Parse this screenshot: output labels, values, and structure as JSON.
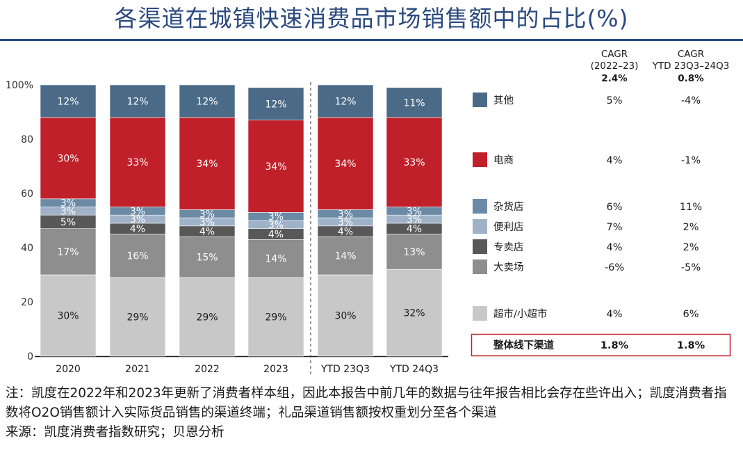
{
  "title": "各渠道在城镇快速消费品市场销售额中的占比(%)",
  "chart_data": {
    "type": "bar",
    "stacked": true,
    "categories": [
      "2020",
      "2021",
      "2022",
      "2023",
      "YTD 23Q3",
      "YTD 24Q3"
    ],
    "yticks": [
      "0",
      "20",
      "40",
      "60",
      "80",
      "100%"
    ],
    "ylim": [
      0,
      100
    ],
    "series": [
      {
        "name": "超市/小超市",
        "color": "#c8c8c8",
        "label_color": "#1a1a1a",
        "values": [
          30,
          29,
          29,
          29,
          30,
          32
        ],
        "labels": [
          "30%",
          "29%",
          "29%",
          "29%",
          "30%",
          "32%"
        ]
      },
      {
        "name": "大卖场",
        "color": "#8e8e8e",
        "label_color": "#ffffff",
        "values": [
          17,
          16,
          15,
          14,
          14,
          13
        ],
        "labels": [
          "17%",
          "16%",
          "15%",
          "14%",
          "14%",
          "13%"
        ]
      },
      {
        "name": "专卖店",
        "color": "#585858",
        "label_color": "#ffffff",
        "values": [
          5,
          4,
          4,
          4,
          4,
          4
        ],
        "labels": [
          "5%",
          "4%",
          "4%",
          "4%",
          "4%",
          "4%"
        ]
      },
      {
        "name": "便利店",
        "color": "#9fb2c8",
        "label_color": "#ffffff",
        "values": [
          3,
          3,
          3,
          3,
          3,
          3
        ],
        "labels": [
          "3%",
          "3%",
          "3%",
          "3%",
          "3%",
          "3%"
        ]
      },
      {
        "name": "杂货店",
        "color": "#6b8aa6",
        "label_color": "#ffffff",
        "values": [
          3,
          3,
          3,
          3,
          3,
          3
        ],
        "labels": [
          "3%",
          "3%",
          "3%",
          "3%",
          "3%",
          "3%"
        ]
      },
      {
        "name": "电商",
        "color": "#c0202a",
        "label_color": "#ffffff",
        "values": [
          30,
          33,
          34,
          34,
          34,
          33
        ],
        "labels": [
          "30%",
          "33%",
          "34%",
          "34%",
          "34%",
          "33%"
        ]
      },
      {
        "name": "其他",
        "color": "#4b6a87",
        "label_color": "#ffffff",
        "values": [
          12,
          12,
          12,
          12,
          12,
          11
        ],
        "labels": [
          "12%",
          "12%",
          "12%",
          "12%",
          "12%",
          "11%"
        ]
      }
    ],
    "grid": false,
    "divider_after_category": "2023"
  },
  "table": {
    "col1_header": [
      "CAGR",
      "(2022–23)"
    ],
    "col1_total": "2.4%",
    "col2_header": [
      "CAGR",
      "YTD 23Q3–24Q3"
    ],
    "col2_total": "0.8%",
    "rows": [
      {
        "label": "其他",
        "v1": "5%",
        "v2": "-4%"
      },
      {
        "label": "电商",
        "v1": "4%",
        "v2": "-1%"
      },
      {
        "label": "杂货店",
        "v1": "6%",
        "v2": "11%"
      },
      {
        "label": "便利店",
        "v1": "7%",
        "v2": "2%"
      },
      {
        "label": "专卖店",
        "v1": "4%",
        "v2": "2%"
      },
      {
        "label": "大卖场",
        "v1": "-6%",
        "v2": "-5%"
      },
      {
        "label": "超市/小超市",
        "v1": "4%",
        "v2": "6%"
      }
    ],
    "total_row": {
      "label": "整体线下渠道",
      "v1": "1.8%",
      "v2": "1.8%",
      "border_color": "#c0202a"
    }
  },
  "footnote": {
    "note": "注：凯度在2022年和2023年更新了消费者样本组，因此本报告中前几年的数据与往年报告相比会存在些许出入；凯度消费者指数将O2O销售额计入实际货品销售的渠道终端；礼品渠道销售额按权重划分至各个渠道",
    "source": "来源：凯度消费者指数研究；贝恩分析"
  }
}
